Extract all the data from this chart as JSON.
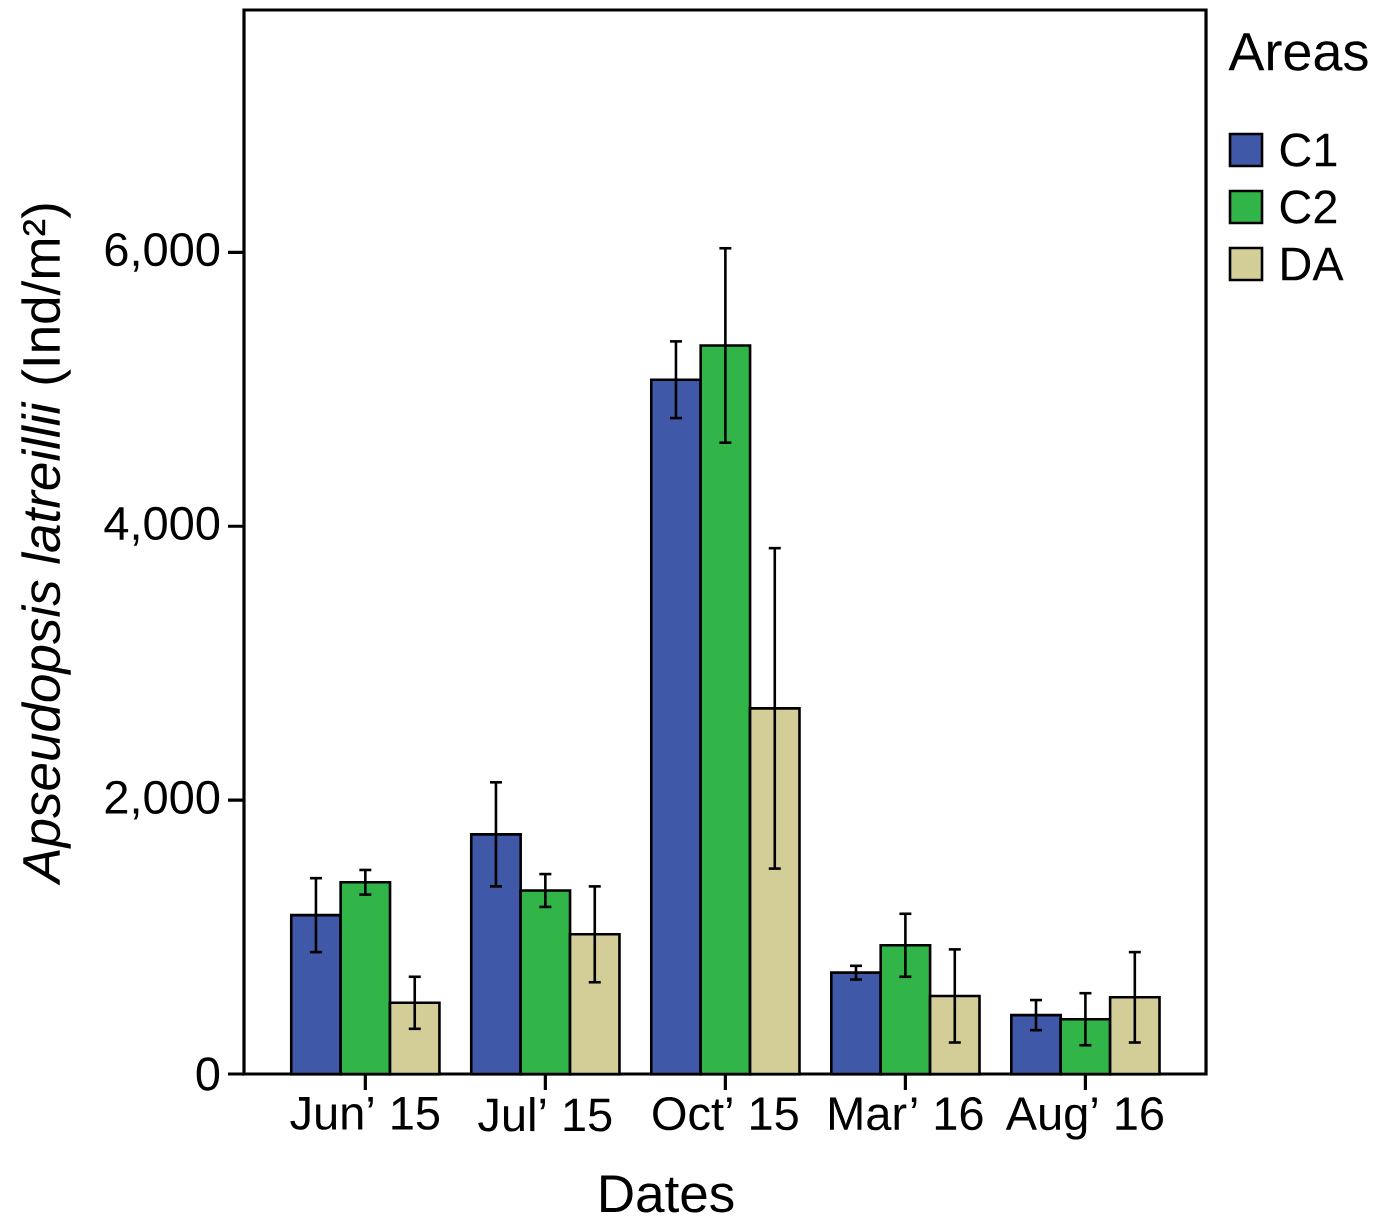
{
  "chart_data": {
    "type": "bar",
    "xlabel": "Dates",
    "ylabel": "*Apseudopsis latreillii* (Ind/m²)",
    "legend_title": "Areas",
    "legend": "top right",
    "categories": [
      "Jun’ 15",
      "Jul’ 15",
      "Oct’ 15",
      "Mar’ 16",
      "Aug’ 16"
    ],
    "series": [
      {
        "name": "C1",
        "color": "#3f58a8",
        "values": [
          1160,
          1750,
          5070,
          740,
          430
        ],
        "errors": [
          270,
          380,
          280,
          50,
          110
        ]
      },
      {
        "name": "C2",
        "color": "#32b548",
        "values": [
          1400,
          1340,
          5320,
          940,
          400
        ],
        "errors": [
          90,
          120,
          710,
          230,
          190
        ]
      },
      {
        "name": "DA",
        "color": "#d3ce98",
        "values": [
          520,
          1020,
          2670,
          570,
          560
        ],
        "errors": [
          190,
          350,
          1170,
          340,
          330
        ]
      }
    ],
    "ylim": [
      0,
      7770
    ],
    "yticks": [
      0,
      {
        "value": 2000,
        "label": "2,000"
      },
      {
        "value": 4000,
        "label": "4,000"
      },
      {
        "value": 6000,
        "label": "6,000"
      }
    ]
  }
}
